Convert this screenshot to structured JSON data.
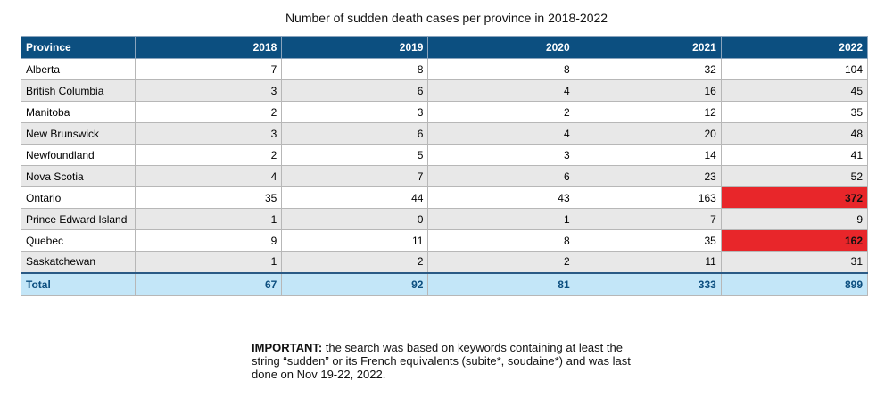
{
  "title": "Number of sudden death cases per province in 2018-2022",
  "table": {
    "headers": [
      "Province",
      "2018",
      "2019",
      "2020",
      "2021",
      "2022"
    ],
    "rows": [
      {
        "province": "Alberta",
        "values": [
          "7",
          "8",
          "8",
          "32",
          "104"
        ]
      },
      {
        "province": "British Columbia",
        "values": [
          "3",
          "6",
          "4",
          "16",
          "45"
        ]
      },
      {
        "province": "Manitoba",
        "values": [
          "2",
          "3",
          "2",
          "12",
          "35"
        ]
      },
      {
        "province": "New Brunswick",
        "values": [
          "3",
          "6",
          "4",
          "20",
          "48"
        ]
      },
      {
        "province": "Newfoundland",
        "values": [
          "2",
          "5",
          "3",
          "14",
          "41"
        ]
      },
      {
        "province": "Nova Scotia",
        "values": [
          "4",
          "7",
          "6",
          "23",
          "52"
        ]
      },
      {
        "province": "Ontario",
        "values": [
          "35",
          "44",
          "43",
          "163",
          "372"
        ]
      },
      {
        "province": "Prince Edward Island",
        "values": [
          "1",
          "0",
          "1",
          "7",
          "9"
        ]
      },
      {
        "province": "Quebec",
        "values": [
          "9",
          "11",
          "8",
          "35",
          "162"
        ]
      },
      {
        "province": "Saskatchewan",
        "values": [
          "1",
          "2",
          "2",
          "11",
          "31"
        ]
      }
    ],
    "total": {
      "label": "Total",
      "values": [
        "67",
        "92",
        "81",
        "333",
        "899"
      ]
    },
    "highlight_color": "#e8262a",
    "header_color": "#0c4f80",
    "total_row_color": "#c3e6f8"
  },
  "note": {
    "bold": "IMPORTANT:",
    "text": " the search was based on keywords containing at least the string “sudden” or its French equivalents (subite*, soudaine*) and was last done on Nov 19-22, 2022."
  }
}
